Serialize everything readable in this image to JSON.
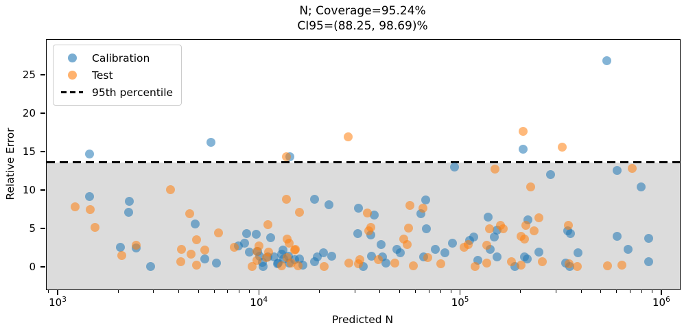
{
  "figure": {
    "title_line1": "N; Coverage=95.24%",
    "title_line2": "CI95=(88.25, 98.69)%"
  },
  "axes": {
    "xlabel": "Predicted N",
    "ylabel": "Relative Error",
    "x_scale": "log",
    "x_tick_exponents": [
      3,
      4,
      5,
      6
    ],
    "x_minor_decades": [
      2,
      3,
      4,
      5
    ],
    "xlim_log10": [
      2.942,
      6.089
    ],
    "y_ticks": [
      0,
      5,
      10,
      15,
      20,
      25
    ],
    "ylim": [
      -2.86,
      29.64
    ]
  },
  "legend": {
    "items": [
      {
        "label": "Calibration",
        "type": "dot",
        "color": "#1f77b4"
      },
      {
        "label": "Test",
        "type": "dot",
        "color": "#ff7f0e"
      },
      {
        "label": "95th percentile",
        "type": "dashed-line",
        "color": "#000000"
      }
    ]
  },
  "chart_data": {
    "type": "scatter",
    "title": "N; Coverage=95.24%  CI95=(88.25, 98.69)%",
    "xlabel": "Predicted N",
    "ylabel": "Relative Error",
    "x_scale": "log",
    "xlim": [
      875,
      1230000
    ],
    "ylim": [
      -2.86,
      29.64
    ],
    "marker_alpha": 0.55,
    "percentile_line": {
      "value": 13.7,
      "label": "95th percentile",
      "style": "dashed",
      "color": "#000000"
    },
    "shaded_region": {
      "from": -2.86,
      "to": 13.7,
      "color": "rgba(128,128,128,0.28)"
    },
    "series": [
      {
        "name": "Calibration",
        "color": "#1f77b4",
        "points": [
          [
            1430,
            14.8
          ],
          [
            5730,
            16.3
          ],
          [
            14100,
            14.4
          ],
          [
            93000,
            13.1
          ],
          [
            533000,
            26.9
          ],
          [
            204000,
            15.4
          ],
          [
            280000,
            12.1
          ],
          [
            600000,
            12.6
          ],
          [
            790000,
            10.5
          ],
          [
            1430,
            9.2
          ],
          [
            2260,
            8.6
          ],
          [
            2230,
            7.2
          ],
          [
            4780,
            5.7
          ],
          [
            2040,
            2.6
          ],
          [
            2430,
            2.5
          ],
          [
            2870,
            0.1
          ],
          [
            5340,
            1.1
          ],
          [
            6100,
            0.6
          ],
          [
            7850,
            2.85
          ],
          [
            8400,
            3.2
          ],
          [
            8600,
            4.4
          ],
          [
            8900,
            2.0
          ],
          [
            9600,
            4.3
          ],
          [
            9800,
            2.1
          ],
          [
            10000,
            1.5
          ],
          [
            10300,
            0.7
          ],
          [
            10400,
            0.1
          ],
          [
            11000,
            1.4
          ],
          [
            11400,
            3.9
          ],
          [
            11800,
            1.4
          ],
          [
            12300,
            0.5
          ],
          [
            12400,
            0.6
          ],
          [
            12900,
            1.7
          ],
          [
            13100,
            2.3
          ],
          [
            13200,
            1.1
          ],
          [
            13900,
            1.5
          ],
          [
            14000,
            0.6
          ],
          [
            15000,
            1.0
          ],
          [
            15800,
            1.1
          ],
          [
            16400,
            0.35
          ],
          [
            18800,
            8.9
          ],
          [
            22100,
            8.2
          ],
          [
            30900,
            7.7
          ],
          [
            37300,
            6.8
          ],
          [
            18800,
            0.8
          ],
          [
            19400,
            1.4
          ],
          [
            20800,
            1.9
          ],
          [
            22900,
            1.5
          ],
          [
            30700,
            4.4
          ],
          [
            32700,
            0.1
          ],
          [
            35800,
            4.2
          ],
          [
            36100,
            1.5
          ],
          [
            40300,
            3.0
          ],
          [
            40900,
            1.4
          ],
          [
            42600,
            0.6
          ],
          [
            48100,
            2.4
          ],
          [
            50100,
            1.9
          ],
          [
            63400,
            7.05
          ],
          [
            67000,
            8.8
          ],
          [
            67700,
            5.0
          ],
          [
            65400,
            1.4
          ],
          [
            74900,
            2.4
          ],
          [
            83200,
            1.9
          ],
          [
            90900,
            3.2
          ],
          [
            111000,
            3.5
          ],
          [
            116000,
            4.0
          ],
          [
            122000,
            0.9
          ],
          [
            137000,
            6.6
          ],
          [
            140000,
            2.4
          ],
          [
            147000,
            4.0
          ],
          [
            151000,
            1.4
          ],
          [
            152000,
            4.9
          ],
          [
            186000,
            0.1
          ],
          [
            207000,
            1.4
          ],
          [
            214000,
            1.1
          ],
          [
            216000,
            6.2
          ],
          [
            244000,
            2.0
          ],
          [
            333000,
            0.6
          ],
          [
            340000,
            4.8
          ],
          [
            348000,
            0.1
          ],
          [
            351000,
            4.4
          ],
          [
            382000,
            1.9
          ],
          [
            600000,
            4.1
          ],
          [
            676000,
            2.4
          ],
          [
            860000,
            3.8
          ],
          [
            857000,
            0.8
          ]
        ]
      },
      {
        "name": "Test",
        "color": "#ff7f0e",
        "points": [
          [
            13600,
            14.4
          ],
          [
            27500,
            17.05
          ],
          [
            204000,
            17.7
          ],
          [
            320000,
            15.7
          ],
          [
            148000,
            12.8
          ],
          [
            710000,
            12.9
          ],
          [
            223000,
            10.5
          ],
          [
            1210,
            7.9
          ],
          [
            1440,
            7.5
          ],
          [
            1520,
            5.2
          ],
          [
            3600,
            10.1
          ],
          [
            4480,
            7.05
          ],
          [
            2060,
            1.6
          ],
          [
            2430,
            2.9
          ],
          [
            4080,
            2.4
          ],
          [
            4050,
            0.8
          ],
          [
            4560,
            1.7
          ],
          [
            4880,
            3.6
          ],
          [
            4850,
            0.35
          ],
          [
            5340,
            2.3
          ],
          [
            6250,
            4.5
          ],
          [
            7500,
            2.6
          ],
          [
            9200,
            0.1
          ],
          [
            9700,
            2.1
          ],
          [
            9700,
            0.9
          ],
          [
            9900,
            2.85
          ],
          [
            10800,
            1.3
          ],
          [
            11000,
            5.55
          ],
          [
            11100,
            2.0
          ],
          [
            12900,
            0.25
          ],
          [
            13600,
            8.9
          ],
          [
            13700,
            3.7
          ],
          [
            13700,
            1.25
          ],
          [
            14000,
            3.2
          ],
          [
            14400,
            0.6
          ],
          [
            14900,
            2.3
          ],
          [
            15100,
            2.4
          ],
          [
            15600,
            0.2
          ],
          [
            15750,
            7.2
          ],
          [
            21000,
            0.1
          ],
          [
            27900,
            0.6
          ],
          [
            30900,
            0.5
          ],
          [
            31600,
            1.0
          ],
          [
            34300,
            7.1
          ],
          [
            34900,
            4.8
          ],
          [
            35700,
            5.2
          ],
          [
            38800,
            1.0
          ],
          [
            46900,
            0.6
          ],
          [
            52200,
            3.7
          ],
          [
            54000,
            3.0
          ],
          [
            55000,
            5.1
          ],
          [
            55700,
            8.1
          ],
          [
            58100,
            0.2
          ],
          [
            65000,
            7.7
          ],
          [
            68400,
            1.25
          ],
          [
            79300,
            0.5
          ],
          [
            104000,
            2.6
          ],
          [
            109000,
            3.0
          ],
          [
            118000,
            0.1
          ],
          [
            135000,
            2.9
          ],
          [
            135000,
            0.6
          ],
          [
            139000,
            5.0
          ],
          [
            158000,
            5.5
          ],
          [
            162000,
            5.0
          ],
          [
            178000,
            0.8
          ],
          [
            200000,
            4.1
          ],
          [
            200000,
            0.35
          ],
          [
            208000,
            3.7
          ],
          [
            211000,
            5.45
          ],
          [
            232000,
            4.8
          ],
          [
            244000,
            6.5
          ],
          [
            254000,
            0.8
          ],
          [
            342000,
            5.5
          ],
          [
            345000,
            0.5
          ],
          [
            379000,
            0.1
          ],
          [
            535000,
            0.2
          ],
          [
            631000,
            0.35
          ]
        ]
      }
    ]
  }
}
